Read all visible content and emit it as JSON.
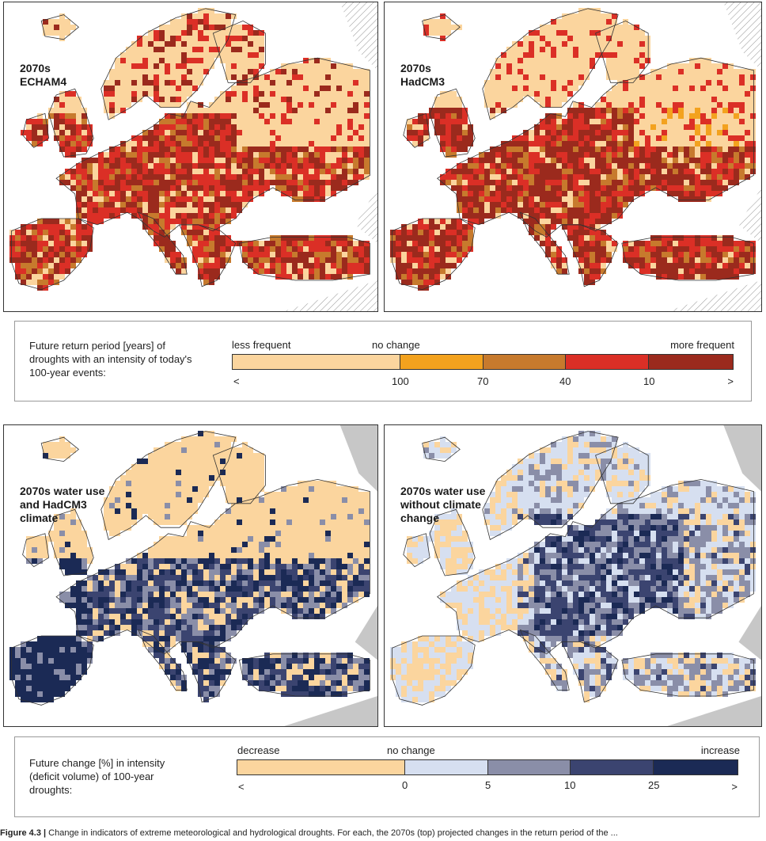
{
  "maps": [
    {
      "id": "m1",
      "label": "2070s\nECHAM4",
      "palette": "drought"
    },
    {
      "id": "m2",
      "label": "2070s\nHadCM3",
      "palette": "drought"
    },
    {
      "id": "m3",
      "label": "2070s water use\nand HadCM3\nclimate",
      "palette": "deficit"
    },
    {
      "id": "m4",
      "label": "2070s water use\nwithout climate\nchange",
      "palette": "deficit"
    }
  ],
  "legend1": {
    "description": "Future return period [years] of\ndroughts with an intensity of today's\n100-year events:",
    "left_label": "less frequent",
    "center_label": "no change",
    "right_label": "more frequent",
    "lt": "<",
    "gt": ">",
    "ticks": [
      "100",
      "70",
      "40",
      "10"
    ],
    "colors": [
      "#fbd59e",
      "#f3a21e",
      "#c77a2d",
      "#db2f26",
      "#9b2a1d"
    ]
  },
  "legend2": {
    "description": "Future change [%] in intensity\n(deficit volume) of 100-year\ndroughts:",
    "left_label": "decrease",
    "center_label": "no change",
    "right_label": "increase",
    "lt": "<",
    "gt": ">",
    "ticks": [
      "0",
      "5",
      "10",
      "25"
    ],
    "colors": [
      "#fbd59e",
      "#d6dff0",
      "#8a8ea8",
      "#3b4470",
      "#1b2a55"
    ]
  },
  "caption": {
    "label": "Figure 4.3 |",
    "text": " Change in indicators of extreme meteorological and hydrological droughts. For each, the 2070s (top) projected changes in the return period of the ..."
  },
  "palettes": {
    "drought": [
      "#fbd59e",
      "#f3a21e",
      "#c77a2d",
      "#db2f26",
      "#9b2a1d"
    ],
    "deficit": [
      "#fbd59e",
      "#d6dff0",
      "#8a8ea8",
      "#3b4470",
      "#1b2a55"
    ],
    "sea": "#ffffff",
    "outside": "#c7c7c7",
    "hatch": "#9a9a9a"
  }
}
